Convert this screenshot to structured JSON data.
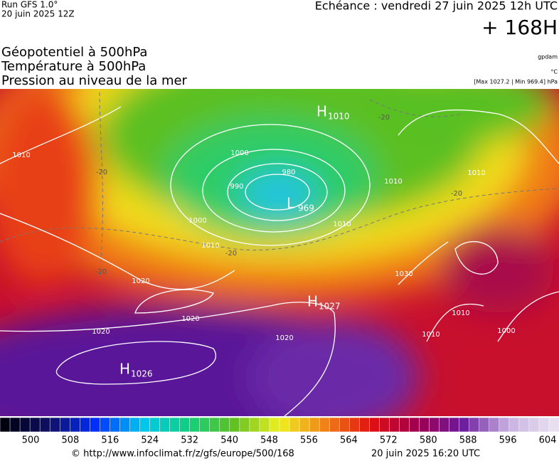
{
  "header": {
    "run": "Run GFS 1.0°",
    "run_date": "20 juin 2025 12Z",
    "echeance": "Echéance : vendredi 27 juin 2025 12h UTC",
    "horizon": "+ 168H",
    "titles": [
      "Géopotentiel à 500hPa",
      "Température à 500hPa",
      "Pression au niveau de la mer"
    ],
    "unit_geo": "gpdam",
    "unit_temp": "°C",
    "pressure_range": "[Max 1027.2 | Min 969.4] hPa"
  },
  "map": {
    "centers": [
      {
        "letter": "H",
        "value": 1010
      },
      {
        "letter": "L",
        "value": 969
      },
      {
        "letter": "H",
        "value": 1027
      },
      {
        "letter": "H",
        "value": 1026
      }
    ],
    "isobar_labels": [
      1010,
      1000,
      990,
      980,
      1000,
      1010,
      1020,
      1020,
      1020,
      1020,
      1010,
      1010,
      1030,
      1010,
      1010,
      1000,
      1010
    ],
    "temperature_labels": [
      -20,
      -20,
      -20,
      -20,
      -20
    ]
  },
  "colorbar": {
    "ticks": [
      500,
      508,
      516,
      524,
      532,
      540,
      548,
      556,
      564,
      572,
      580,
      588,
      596,
      604
    ]
  },
  "footer": {
    "url": "© http://www.infoclimat.fr/z/gfs/europe/500/168",
    "stamp": "20 juin 2025 16:20 UTC"
  }
}
